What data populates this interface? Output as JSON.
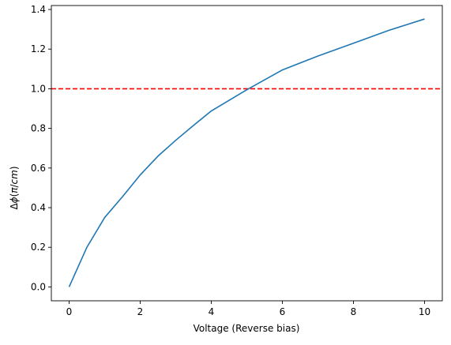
{
  "chart_data": {
    "type": "line",
    "title": "",
    "xlabel": "Voltage (Reverse bias)",
    "ylabel_parts": [
      "Δ",
      "ϕ",
      "(",
      "π",
      "/",
      "cm",
      ")"
    ],
    "xlim": [
      -0.5,
      10.5
    ],
    "ylim": [
      -0.07,
      1.42
    ],
    "xticks": [
      0,
      2,
      4,
      6,
      8,
      10
    ],
    "yticks": [
      0.0,
      0.2,
      0.4,
      0.6,
      0.8,
      1.0,
      1.2,
      1.4
    ],
    "xtick_labels": [
      "0",
      "2",
      "4",
      "6",
      "8",
      "10"
    ],
    "ytick_labels": [
      "0.0",
      "0.2",
      "0.4",
      "0.6",
      "0.8",
      "1.0",
      "1.2",
      "1.4"
    ],
    "grid": false,
    "legend": "none",
    "series": [
      {
        "color": "#1f77b4",
        "style": "solid",
        "x": [
          0,
          0.5,
          1,
          1.5,
          2,
          2.5,
          3,
          3.5,
          4,
          5,
          6,
          7,
          8,
          9,
          10
        ],
        "y": [
          0.0,
          0.2,
          0.35,
          0.455,
          0.565,
          0.66,
          0.74,
          0.815,
          0.888,
          0.995,
          1.095,
          1.165,
          1.23,
          1.295,
          1.352
        ]
      }
    ],
    "hlines": [
      {
        "y": 1.0,
        "color": "#ff0000",
        "style": "dashed"
      }
    ]
  }
}
